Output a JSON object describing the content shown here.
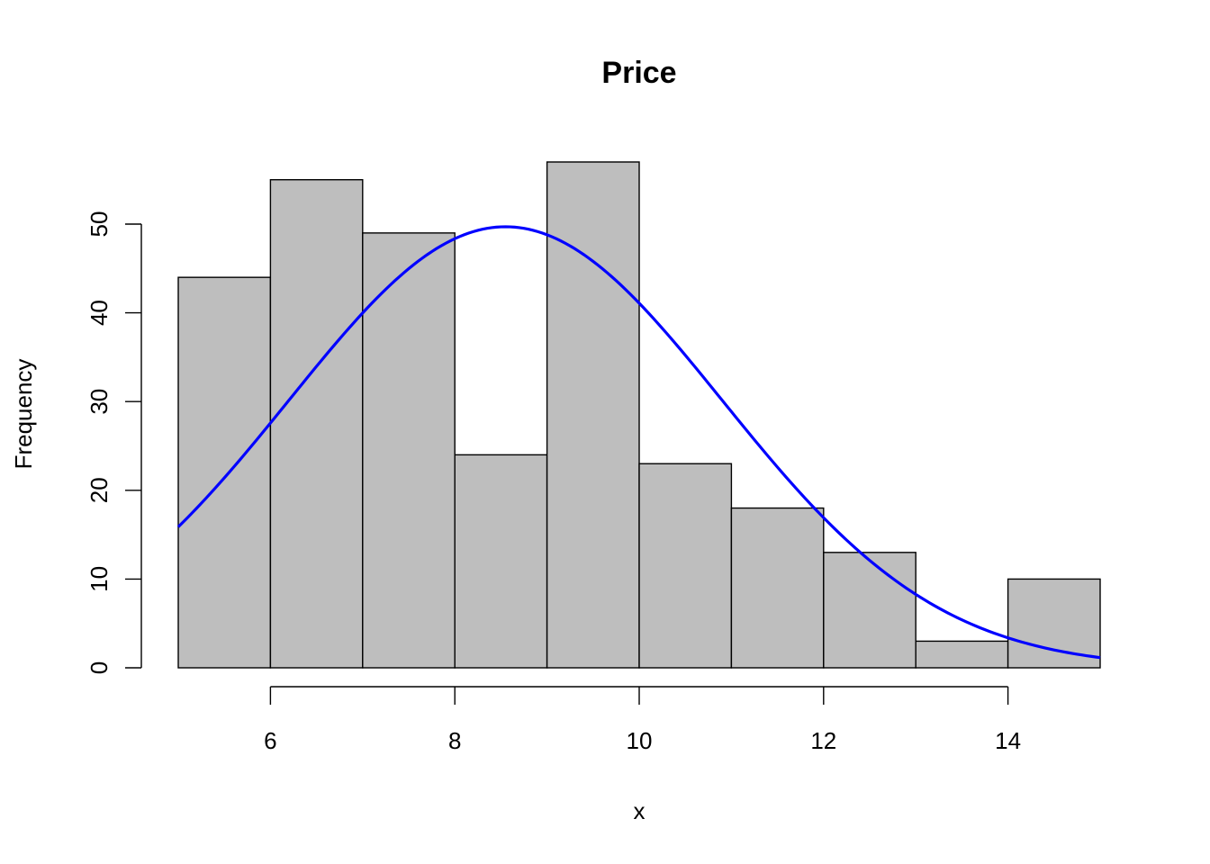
{
  "chart_data": {
    "type": "bar",
    "subtype": "histogram",
    "title": "Price",
    "xlabel": "x",
    "ylabel": "Frequency",
    "bin_edges": [
      5,
      6,
      7,
      8,
      9,
      10,
      11,
      12,
      13,
      14,
      15
    ],
    "values": [
      44,
      55,
      49,
      24,
      57,
      23,
      18,
      13,
      3,
      10
    ],
    "xlim": [
      5,
      15
    ],
    "ylim": [
      0,
      57
    ],
    "x_ticks": [
      6,
      8,
      10,
      12,
      14
    ],
    "y_ticks": [
      0,
      10,
      20,
      30,
      40,
      50
    ],
    "grid": false,
    "overlay": {
      "type": "line",
      "kind": "normal-density-fit",
      "mean": 8.55,
      "sd": 2.35,
      "peak": 49.7,
      "x_range": [
        5,
        15
      ]
    },
    "colors": {
      "bar_fill": "#bebebe",
      "bar_stroke": "#000000",
      "curve": "#0000ff"
    }
  }
}
